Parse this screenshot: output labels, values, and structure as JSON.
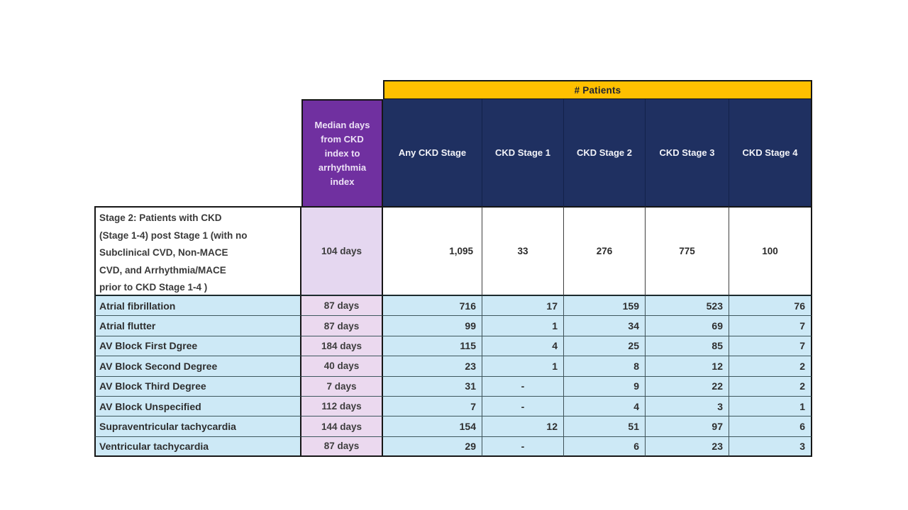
{
  "page": {
    "background": "#ffffff"
  },
  "chart_data": {
    "type": "table",
    "group_header": "# Patients",
    "median_col_header": "Median days from CKD index to arrhythmia index",
    "stage_col_headers": [
      "Any CKD Stage",
      "CKD Stage 1",
      "CKD Stage 2",
      "CKD Stage 3",
      "CKD Stage 4"
    ],
    "summary_row": {
      "label": "Stage 2: Patients with CKD (Stage 1-4) post Stage 1 (with no Subclinical CVD, Non-MACE CVD, and Arrhythmia/MACE prior to CKD Stage 1-4 )",
      "label_lines": [
        "Stage 2: Patients with CKD",
        "(Stage 1-4) post Stage 1 (with no",
        "Subclinical CVD, Non-MACE",
        "CVD, and Arrhythmia/MACE",
        "prior to CKD Stage 1-4 )"
      ],
      "median_days": "104 days",
      "values": [
        "1,095",
        "33",
        "276",
        "775",
        "100"
      ]
    },
    "rows": [
      {
        "label": "Atrial fibrillation",
        "median_days": "87 days",
        "values": [
          "716",
          "17",
          "159",
          "523",
          "76"
        ]
      },
      {
        "label": "Atrial flutter",
        "median_days": "87 days",
        "values": [
          "99",
          "1",
          "34",
          "69",
          "7"
        ]
      },
      {
        "label": "AV Block First Dgree",
        "median_days": "184 days",
        "values": [
          "115",
          "4",
          "25",
          "85",
          "7"
        ]
      },
      {
        "label": "AV Block Second Degree",
        "median_days": "40 days",
        "values": [
          "23",
          "1",
          "8",
          "12",
          "2"
        ]
      },
      {
        "label": "AV Block Third Degree",
        "median_days": "7 days",
        "values": [
          "31",
          "-",
          "9",
          "22",
          "2"
        ]
      },
      {
        "label": "AV Block Unspecified",
        "median_days": "112 days",
        "values": [
          "7",
          "-",
          "4",
          "3",
          "1"
        ]
      },
      {
        "label": "Supraventricular tachycardia",
        "median_days": "144 days",
        "values": [
          "154",
          "12",
          "51",
          "97",
          "6"
        ]
      },
      {
        "label": "Ventricular tachycardia",
        "median_days": "87 days",
        "values": [
          "29",
          "-",
          "6",
          "23",
          "3"
        ]
      }
    ],
    "colors": {
      "patients_band": "#FFC000",
      "stage_header_bg": "#1F3061",
      "median_header_bg": "#7030A0",
      "summary_days_bg": "#E5D7F0",
      "row_bg": "#CDE9F6",
      "row_days_bg": "#EBD9EF",
      "grid_line": "#3F3F3F",
      "outer_border": "#161616",
      "header_text": "#FFFFFF",
      "body_text": "#2E2E2E"
    }
  }
}
